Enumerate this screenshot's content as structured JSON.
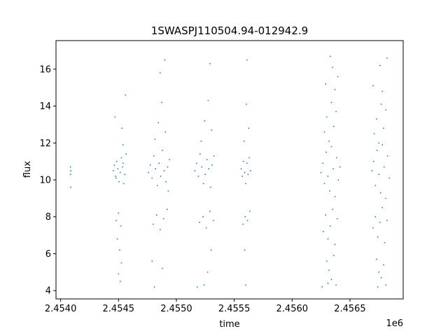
{
  "chart_data": {
    "type": "scatter",
    "title": "1SWASPJ110504.94-012942.9",
    "xlabel": "time",
    "ylabel": "flux",
    "x_offset_label": "1e6",
    "xlim": [
      2453960,
      2456960
    ],
    "ylim": [
      3.55,
      17.55
    ],
    "x_ticks": [
      2454000,
      2454500,
      2455000,
      2455500,
      2456000,
      2456500
    ],
    "x_tick_labels": [
      "2.4540",
      "2.4545",
      "2.4550",
      "2.4555",
      "2.4560",
      "2.4565"
    ],
    "y_ticks": [
      4,
      6,
      8,
      10,
      12,
      14,
      16
    ],
    "y_tick_labels": [
      "4",
      "6",
      "8",
      "10",
      "12",
      "14",
      "16"
    ],
    "grid": false,
    "legend": "none",
    "point_color": "#1f77b4",
    "series": [
      {
        "x": [
          2454085,
          2454086,
          2454087,
          2454088
        ],
        "y": [
          10.7,
          10.3,
          9.6,
          10.5
        ]
      },
      {
        "x": [
          2454455,
          2454465,
          2454475,
          2454485,
          2454495,
          2454505,
          2454515,
          2454525,
          2454535,
          2454545,
          2454555,
          2454565,
          2454480,
          2454500,
          2454520,
          2454540,
          2454490,
          2454510,
          2454530,
          2454470,
          2454560,
          2454500,
          2454515,
          2454525,
          2454480,
          2454540
        ],
        "y": [
          10.5,
          10.8,
          10.2,
          11.0,
          10.6,
          9.9,
          10.4,
          11.2,
          10.7,
          9.8,
          10.3,
          11.4,
          7.8,
          8.2,
          7.5,
          11.9,
          6.8,
          6.2,
          12.8,
          13.4,
          14.6,
          4.9,
          4.5,
          5.5,
          10.1,
          10.9
        ]
      },
      {
        "x": [
          2454760,
          2454775,
          2454790,
          2454805,
          2454820,
          2454835,
          2454850,
          2454865,
          2454880,
          2454895,
          2454910,
          2454925,
          2454940,
          2454800,
          2454830,
          2454860,
          2454890,
          2454920,
          2454815,
          2454845,
          2454875,
          2454905,
          2454790,
          2454880,
          2454900,
          2454810,
          2454860,
          2454930
        ],
        "y": [
          10.4,
          10.8,
          10.1,
          11.3,
          10.6,
          9.7,
          10.9,
          10.2,
          11.6,
          10.5,
          9.9,
          10.7,
          11.1,
          7.6,
          8.1,
          7.3,
          7.9,
          8.4,
          12.2,
          13.1,
          14.2,
          12.6,
          5.6,
          5.2,
          16.5,
          4.2,
          15.8,
          9.4
        ]
      },
      {
        "x": [
          2455160,
          2455175,
          2455190,
          2455205,
          2455220,
          2455235,
          2455250,
          2455265,
          2455280,
          2455295,
          2455310,
          2455325,
          2455200,
          2455230,
          2455260,
          2455290,
          2455320,
          2455215,
          2455245,
          2455275,
          2455305,
          2455240,
          2455270,
          2455290,
          2455180,
          2455300
        ],
        "y": [
          10.5,
          10.9,
          10.2,
          11.4,
          10.7,
          9.8,
          10.3,
          11.1,
          10.6,
          9.6,
          10.8,
          11.3,
          7.7,
          8.0,
          7.4,
          8.3,
          7.8,
          12.1,
          13.2,
          14.3,
          12.7,
          4.3,
          5.0,
          16.3,
          4.2,
          6.2
        ]
      },
      {
        "x": [
          2455560,
          2455570,
          2455580,
          2455590,
          2455600,
          2455610,
          2455620,
          2455630,
          2455640,
          2455575,
          2455595,
          2455615,
          2455635,
          2455585,
          2455605,
          2455625,
          2455590,
          2455600,
          2455610
        ],
        "y": [
          10.6,
          10.2,
          11.0,
          10.4,
          9.8,
          10.9,
          10.3,
          11.2,
          10.5,
          7.6,
          8.0,
          7.8,
          8.3,
          12.1,
          14.1,
          12.8,
          6.2,
          4.3,
          16.5
        ]
      },
      {
        "x": [
          2456250,
          2456265,
          2456280,
          2456295,
          2456310,
          2456325,
          2456340,
          2456355,
          2456370,
          2456385,
          2456400,
          2456415,
          2456270,
          2456290,
          2456310,
          2456330,
          2456350,
          2456370,
          2456390,
          2456280,
          2456300,
          2456320,
          2456340,
          2456360,
          2456380,
          2456300,
          2456320,
          2456340,
          2456360,
          2456380,
          2456290,
          2456350,
          2456260,
          2456330,
          2456395,
          2456310,
          2456370
        ],
        "y": [
          10.4,
          10.9,
          9.8,
          11.5,
          10.2,
          9.4,
          11.8,
          10.6,
          9.1,
          11.2,
          10.0,
          10.7,
          7.2,
          8.1,
          6.8,
          7.5,
          8.4,
          6.5,
          7.9,
          12.6,
          13.4,
          12.1,
          14.2,
          12.9,
          13.7,
          5.6,
          5.1,
          4.6,
          5.9,
          4.3,
          15.2,
          16.1,
          4.2,
          16.7,
          15.6,
          4.4,
          14.9
        ]
      },
      {
        "x": [
          2456690,
          2456705,
          2456720,
          2456735,
          2456750,
          2456765,
          2456780,
          2456795,
          2456810,
          2456825,
          2456840,
          2456700,
          2456720,
          2456740,
          2456760,
          2456780,
          2456800,
          2456820,
          2456710,
          2456730,
          2456750,
          2456770,
          2456790,
          2456810,
          2456730,
          2456750,
          2456770,
          2456790,
          2456810,
          2456700,
          2456760,
          2456820,
          2456780,
          2456740
        ],
        "y": [
          10.5,
          11.0,
          9.7,
          11.6,
          10.3,
          9.3,
          11.9,
          10.7,
          9.0,
          11.3,
          10.1,
          7.4,
          8.0,
          6.9,
          7.7,
          8.5,
          6.6,
          7.8,
          12.5,
          13.3,
          12.0,
          14.1,
          12.8,
          13.8,
          5.7,
          5.0,
          4.7,
          5.4,
          4.3,
          15.1,
          16.2,
          16.6,
          14.8,
          4.2
        ]
      }
    ]
  }
}
